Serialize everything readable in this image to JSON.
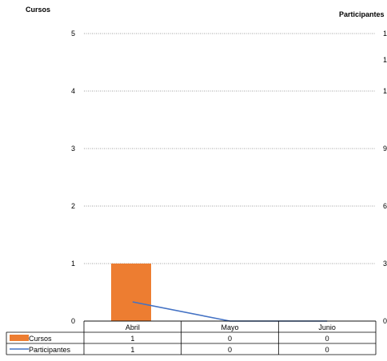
{
  "chart_data": {
    "type": "bar",
    "categories": [
      "Abril",
      "Mayo",
      "Junio"
    ],
    "series": [
      {
        "name": "Cursos",
        "kind": "bar",
        "axis": "left",
        "color": "#ED7D31",
        "values": [
          1,
          0,
          0
        ]
      },
      {
        "name": "Participantes",
        "kind": "line",
        "axis": "right",
        "color": "#4472C4",
        "values": [
          1,
          0,
          0
        ]
      }
    ],
    "ylabel": "Cursos",
    "y2label": "Participantes",
    "ylim": [
      0,
      5
    ],
    "y_ticks": [
      "0",
      "1",
      "2",
      "3",
      "4",
      "5"
    ],
    "y2_visible_tick_labels": [
      "0",
      "3",
      "6",
      "9",
      "1",
      "1",
      "1"
    ],
    "grid": true,
    "legend": "data-table"
  }
}
